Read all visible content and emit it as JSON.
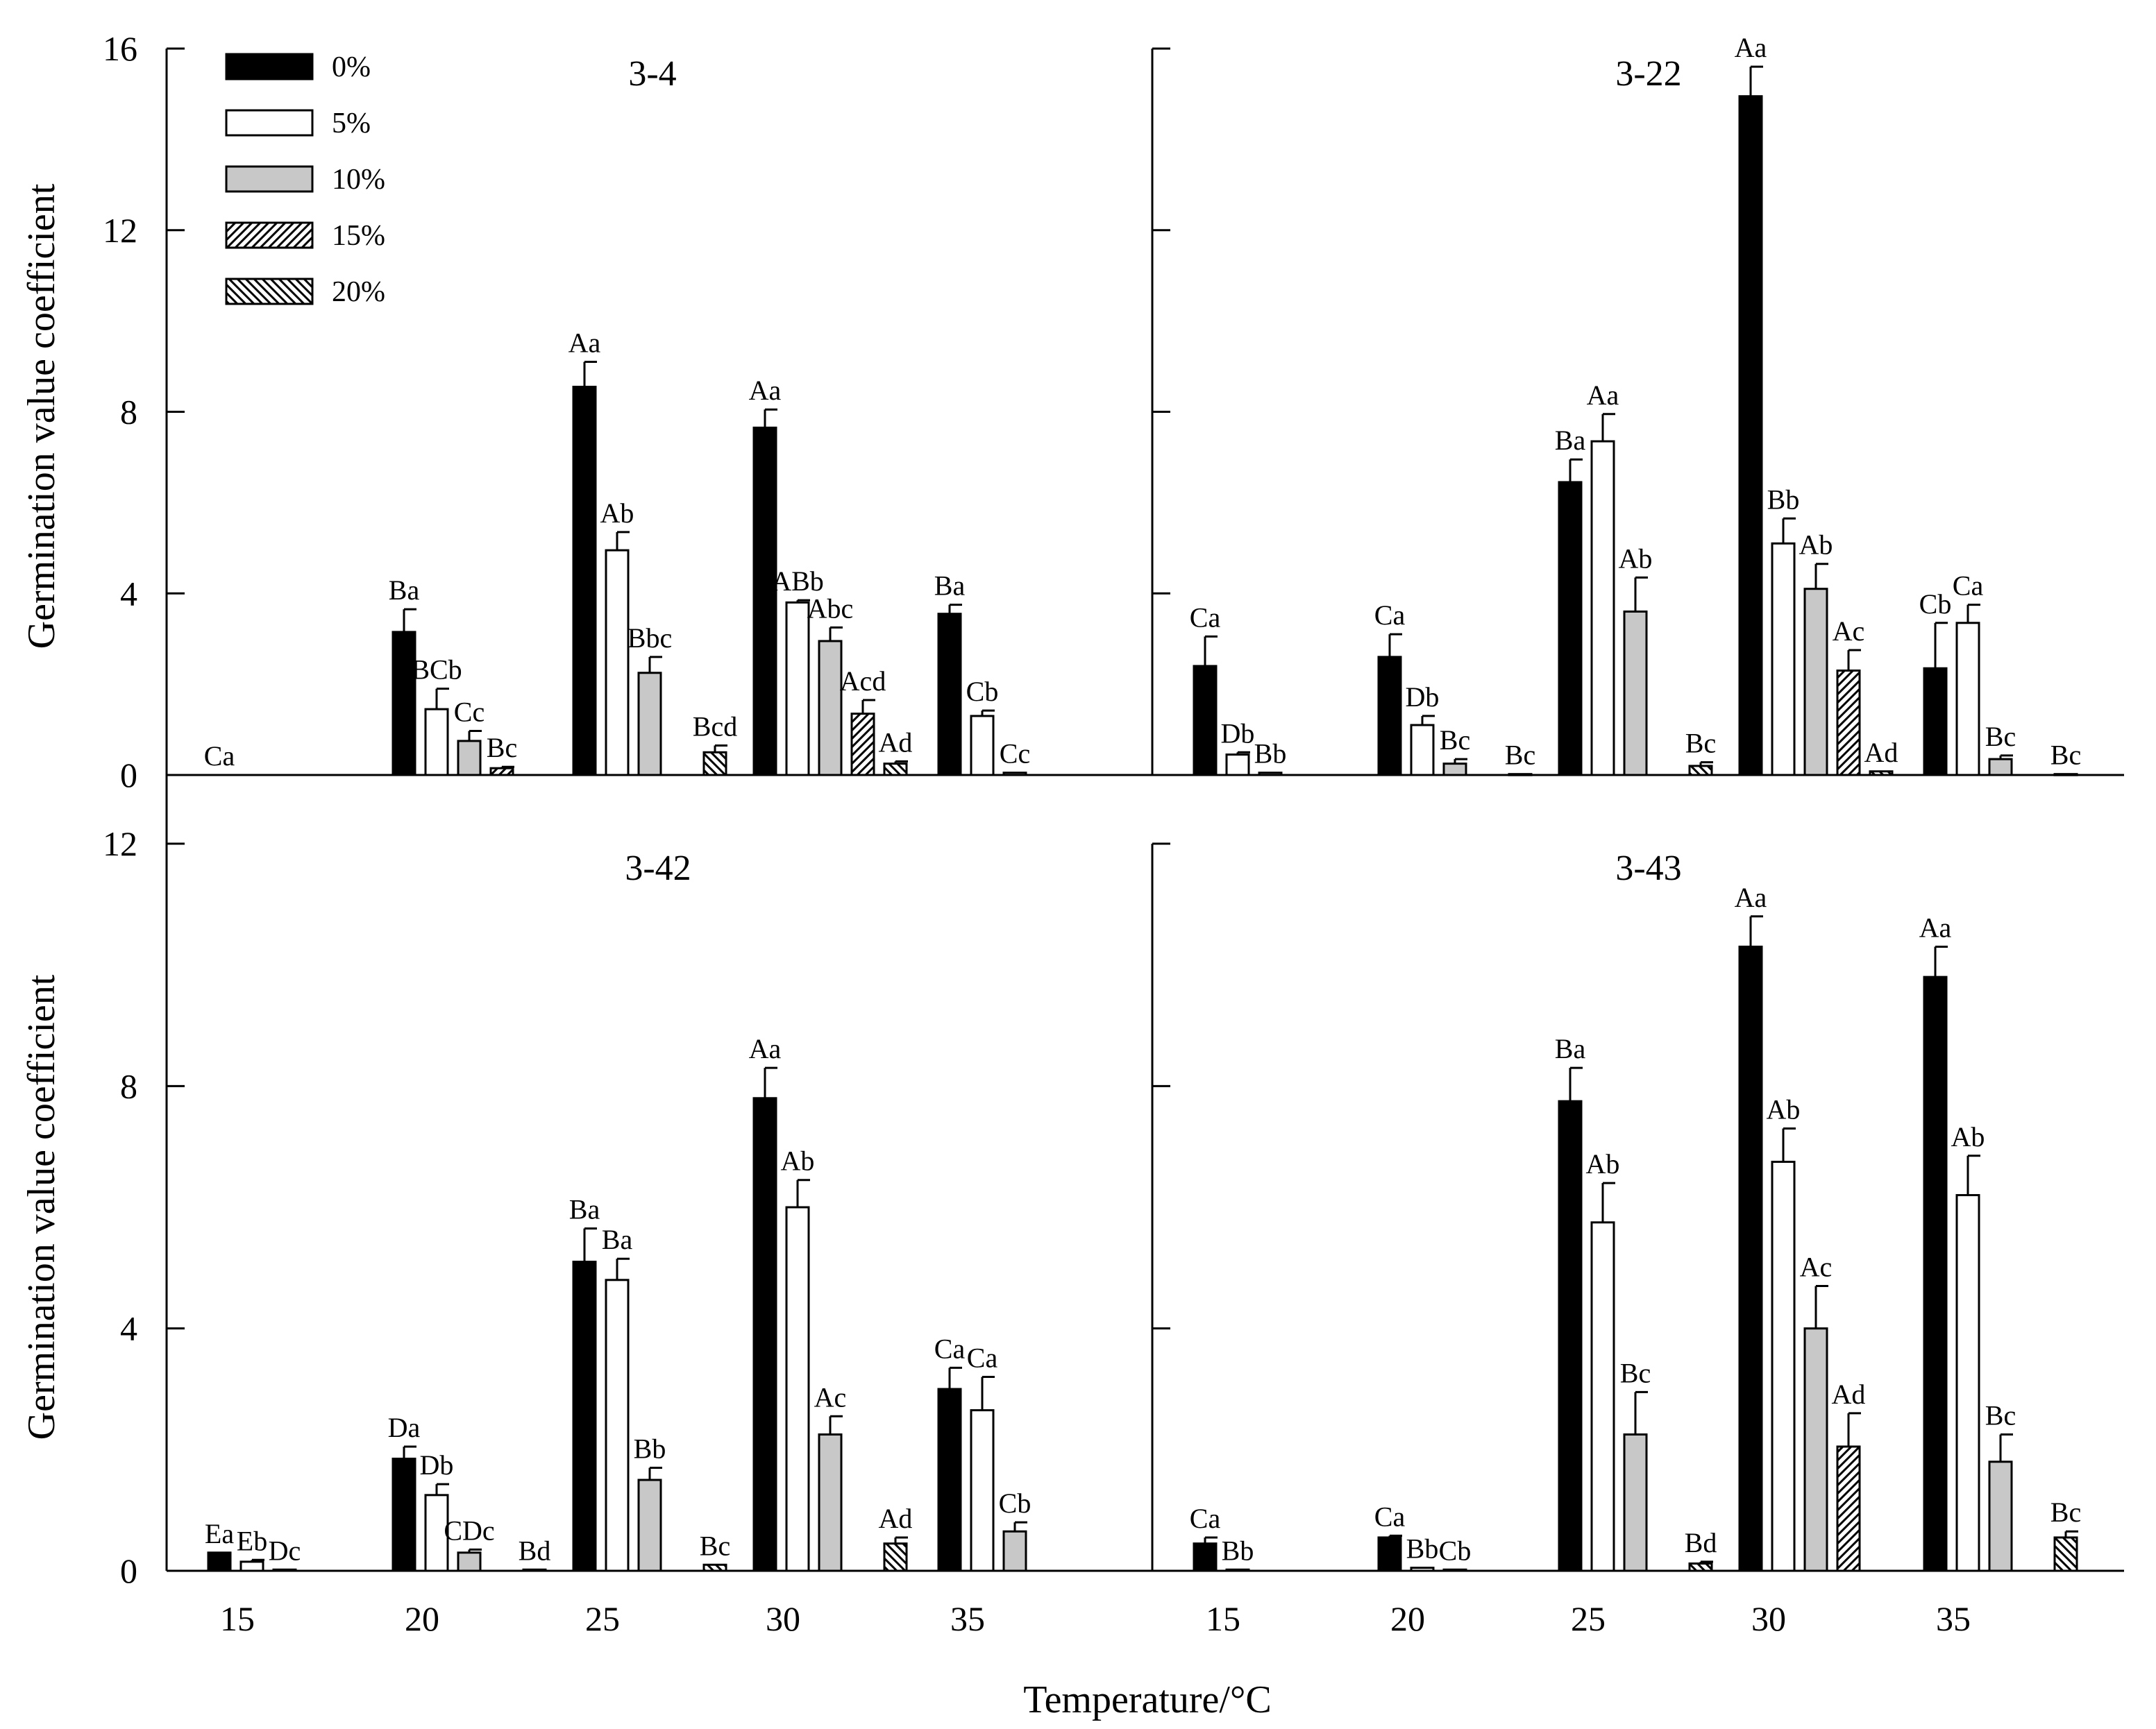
{
  "figure": {
    "ylabel": "Germination value coefficient",
    "xlabel": "Temperature/°C",
    "categories": [
      "15",
      "20",
      "25",
      "30",
      "35"
    ],
    "legend": [
      {
        "label": "0%",
        "fill": "black"
      },
      {
        "label": "5%",
        "fill": "white"
      },
      {
        "label": "10%",
        "fill": "gray"
      },
      {
        "label": "15%",
        "fill": "hatch-fwd"
      },
      {
        "label": "20%",
        "fill": "hatch-back"
      }
    ],
    "colors": {
      "black": "#000000",
      "white": "#ffffff",
      "gray": "#c8c8c8",
      "line": "#000000"
    }
  },
  "chart_data": [
    {
      "type": "bar",
      "title": "3-4",
      "xlabel": "",
      "ylabel": "Germination value coefficient",
      "ylim": [
        0,
        16
      ],
      "yticks": [
        0,
        4,
        8,
        12,
        16
      ],
      "categories": [
        "15",
        "20",
        "25",
        "30",
        "35"
      ],
      "series": [
        {
          "name": "0%",
          "values": [
            0,
            3.15,
            8.55,
            7.65,
            3.55
          ],
          "errors": [
            0,
            0.5,
            0.55,
            0.4,
            0.2
          ],
          "labels": [
            "Ca",
            "Ba",
            "Aa",
            "Aa",
            "Ba"
          ]
        },
        {
          "name": "5%",
          "values": [
            0,
            1.45,
            4.95,
            3.8,
            1.3
          ],
          "errors": [
            0,
            0.45,
            0.4,
            0.05,
            0.12
          ],
          "labels": [
            "",
            "BCb",
            "Ab",
            "ABb",
            "Cb"
          ]
        },
        {
          "name": "10%",
          "values": [
            0,
            0.75,
            2.25,
            2.95,
            0.05
          ],
          "errors": [
            0,
            0.22,
            0.35,
            0.3,
            0
          ],
          "labels": [
            "",
            "Cc",
            "Bbc",
            "Abc",
            "Cc"
          ]
        },
        {
          "name": "15%",
          "values": [
            0,
            0.15,
            0,
            1.35,
            0
          ],
          "errors": [
            0,
            0.03,
            0,
            0.3,
            0
          ],
          "labels": [
            "",
            "Bc",
            "",
            "Acd",
            ""
          ]
        },
        {
          "name": "20%",
          "values": [
            0,
            0,
            0.5,
            0.25,
            0
          ],
          "errors": [
            0,
            0,
            0.15,
            0.05,
            0
          ],
          "labels": [
            "",
            "",
            "Bcd",
            "Ad",
            ""
          ]
        }
      ]
    },
    {
      "type": "bar",
      "title": "3-22",
      "xlabel": "",
      "ylabel": "",
      "ylim": [
        0,
        16
      ],
      "yticks": [
        0,
        4,
        8,
        12,
        16
      ],
      "categories": [
        "15",
        "20",
        "25",
        "30",
        "35"
      ],
      "series": [
        {
          "name": "0%",
          "values": [
            2.4,
            2.6,
            6.45,
            14.95,
            2.35
          ],
          "errors": [
            0.65,
            0.5,
            0.5,
            0.65,
            1.0
          ],
          "labels": [
            "Ca",
            "Ca",
            "Ba",
            "Aa",
            "Cb"
          ]
        },
        {
          "name": "5%",
          "values": [
            0.45,
            1.1,
            7.35,
            5.1,
            3.35
          ],
          "errors": [
            0.05,
            0.2,
            0.6,
            0.55,
            0.4
          ],
          "labels": [
            "Db",
            "Db",
            "Aa",
            "Bb",
            "Ca"
          ]
        },
        {
          "name": "10%",
          "values": [
            0.05,
            0.25,
            3.6,
            4.1,
            0.35
          ],
          "errors": [
            0,
            0.1,
            0.75,
            0.55,
            0.08
          ],
          "labels": [
            "Bb",
            "Bc",
            "Ab",
            "Ab",
            "Bc"
          ]
        },
        {
          "name": "15%",
          "values": [
            0,
            0,
            0,
            2.3,
            0
          ],
          "errors": [
            0,
            0,
            0,
            0.45,
            0
          ],
          "labels": [
            "",
            "",
            "",
            "Ac",
            ""
          ]
        },
        {
          "name": "20%",
          "values": [
            0,
            0.02,
            0.2,
            0.08,
            0.02
          ],
          "errors": [
            0,
            0,
            0.08,
            0,
            0
          ],
          "labels": [
            "",
            "Bc",
            "Bc",
            "Ad",
            "Bc"
          ]
        }
      ]
    },
    {
      "type": "bar",
      "title": "3-42",
      "xlabel": "Temperature/°C",
      "ylabel": "Germination value coefficient",
      "ylim": [
        0,
        12
      ],
      "yticks": [
        0,
        4,
        8,
        12
      ],
      "categories": [
        "15",
        "20",
        "25",
        "30",
        "35"
      ],
      "series": [
        {
          "name": "0%",
          "values": [
            0.3,
            1.85,
            5.1,
            7.8,
            3.0
          ],
          "errors": [
            0,
            0.2,
            0.55,
            0.5,
            0.35
          ],
          "labels": [
            "Ea",
            "Da",
            "Ba",
            "Aa",
            "Ca"
          ]
        },
        {
          "name": "5%",
          "values": [
            0.15,
            1.25,
            4.8,
            6.0,
            2.65
          ],
          "errors": [
            0.03,
            0.18,
            0.35,
            0.45,
            0.55
          ],
          "labels": [
            "Eb",
            "Db",
            "Ba",
            "Ab",
            "Ca"
          ]
        },
        {
          "name": "10%",
          "values": [
            0.02,
            0.3,
            1.5,
            2.25,
            0.65
          ],
          "errors": [
            0,
            0.05,
            0.2,
            0.3,
            0.15
          ],
          "labels": [
            "Dc",
            "CDc",
            "Bb",
            "Ac",
            "Cb"
          ]
        },
        {
          "name": "15%",
          "values": [
            0,
            0,
            0,
            0,
            0
          ],
          "errors": [
            0,
            0,
            0,
            0,
            0
          ],
          "labels": [
            "",
            "",
            "",
            "",
            ""
          ]
        },
        {
          "name": "20%",
          "values": [
            0,
            0.02,
            0.1,
            0.45,
            0
          ],
          "errors": [
            0,
            0,
            0,
            0.1,
            0
          ],
          "labels": [
            "",
            "Bd",
            "Bc",
            "Ad",
            ""
          ]
        }
      ]
    },
    {
      "type": "bar",
      "title": "3-43",
      "xlabel": "Temperature/°C",
      "ylabel": "",
      "ylim": [
        0,
        12
      ],
      "yticks": [
        0,
        4,
        8,
        12
      ],
      "categories": [
        "15",
        "20",
        "25",
        "30",
        "35"
      ],
      "series": [
        {
          "name": "0%",
          "values": [
            0.45,
            0.55,
            7.75,
            10.3,
            9.8
          ],
          "errors": [
            0.1,
            0.03,
            0.55,
            0.5,
            0.5
          ],
          "labels": [
            "Ca",
            "Ca",
            "Ba",
            "Aa",
            "Aa"
          ]
        },
        {
          "name": "5%",
          "values": [
            0.02,
            0.05,
            5.75,
            6.75,
            6.2
          ],
          "errors": [
            0,
            0,
            0.65,
            0.55,
            0.65
          ],
          "labels": [
            "Bb",
            "Bb",
            "Ab",
            "Ab",
            "Ab"
          ]
        },
        {
          "name": "10%",
          "values": [
            0,
            0.02,
            2.25,
            4.0,
            1.8
          ],
          "errors": [
            0,
            0,
            0.7,
            0.7,
            0.45
          ],
          "labels": [
            "",
            "Cb",
            "Bc",
            "Ac",
            "Bc"
          ]
        },
        {
          "name": "15%",
          "values": [
            0,
            0,
            0,
            2.05,
            0
          ],
          "errors": [
            0,
            0,
            0,
            0.55,
            0
          ],
          "labels": [
            "",
            "",
            "",
            "Ad",
            ""
          ]
        },
        {
          "name": "20%",
          "values": [
            0,
            0,
            0.12,
            0,
            0.55
          ],
          "errors": [
            0,
            0,
            0.03,
            0,
            0.1
          ],
          "labels": [
            "",
            "",
            "Bd",
            "",
            "Bc"
          ]
        }
      ]
    }
  ]
}
